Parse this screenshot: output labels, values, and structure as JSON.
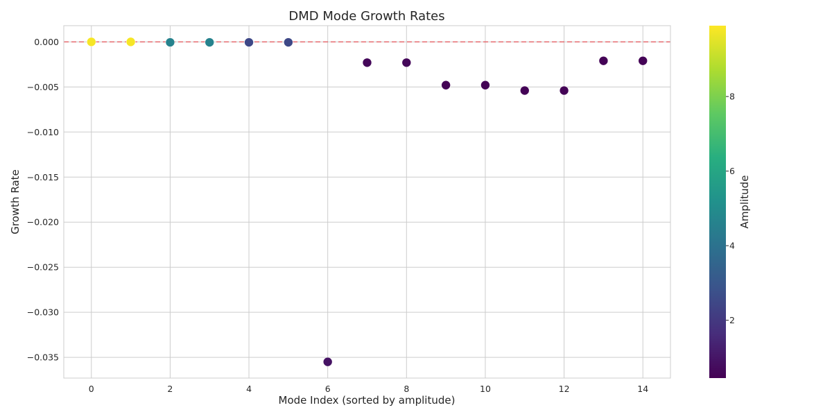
{
  "chart_data": {
    "type": "scatter",
    "title": "DMD Mode Growth Rates",
    "xlabel": "Mode Index (sorted by amplitude)",
    "ylabel": "Growth Rate",
    "xlim": [
      -0.7,
      14.7
    ],
    "ylim": [
      -0.0373,
      0.0018
    ],
    "x_ticks": [
      0,
      2,
      4,
      6,
      8,
      10,
      12,
      14
    ],
    "y_ticks": [
      0.0,
      -0.005,
      -0.01,
      -0.015,
      -0.02,
      -0.025,
      -0.03,
      -0.035
    ],
    "x_tick_labels": [
      "0",
      "2",
      "4",
      "6",
      "8",
      "10",
      "12",
      "14"
    ],
    "y_tick_labels": [
      "0.000",
      "−0.005",
      "−0.010",
      "−0.015",
      "−0.020",
      "−0.025",
      "−0.030",
      "−0.035"
    ],
    "grid": true,
    "reference_line": {
      "y": 0,
      "style": "dashed",
      "color": "#e8565b"
    },
    "colormap": "viridis",
    "colorbar": {
      "label": "Amplitude",
      "range": [
        0.45,
        9.9
      ],
      "ticks": [
        2,
        4,
        6,
        8
      ],
      "tick_labels": [
        "2",
        "4",
        "6",
        "8"
      ]
    },
    "points": [
      {
        "x": 0,
        "y": 0.0,
        "amplitude": 9.8
      },
      {
        "x": 1,
        "y": 0.0,
        "amplitude": 9.8
      },
      {
        "x": 2,
        "y": -5e-05,
        "amplitude": 4.6
      },
      {
        "x": 3,
        "y": -5e-05,
        "amplitude": 4.6
      },
      {
        "x": 4,
        "y": -5e-05,
        "amplitude": 2.5
      },
      {
        "x": 5,
        "y": -5e-05,
        "amplitude": 2.5
      },
      {
        "x": 6,
        "y": -0.0355,
        "amplitude": 0.9
      },
      {
        "x": 7,
        "y": -0.0023,
        "amplitude": 0.6
      },
      {
        "x": 8,
        "y": -0.0023,
        "amplitude": 0.6
      },
      {
        "x": 9,
        "y": -0.0048,
        "amplitude": 0.5
      },
      {
        "x": 10,
        "y": -0.0048,
        "amplitude": 0.5
      },
      {
        "x": 11,
        "y": -0.0054,
        "amplitude": 0.5
      },
      {
        "x": 12,
        "y": -0.0054,
        "amplitude": 0.5
      },
      {
        "x": 13,
        "y": -0.0021,
        "amplitude": 0.5
      },
      {
        "x": 14,
        "y": -0.0021,
        "amplitude": 0.5
      }
    ]
  }
}
